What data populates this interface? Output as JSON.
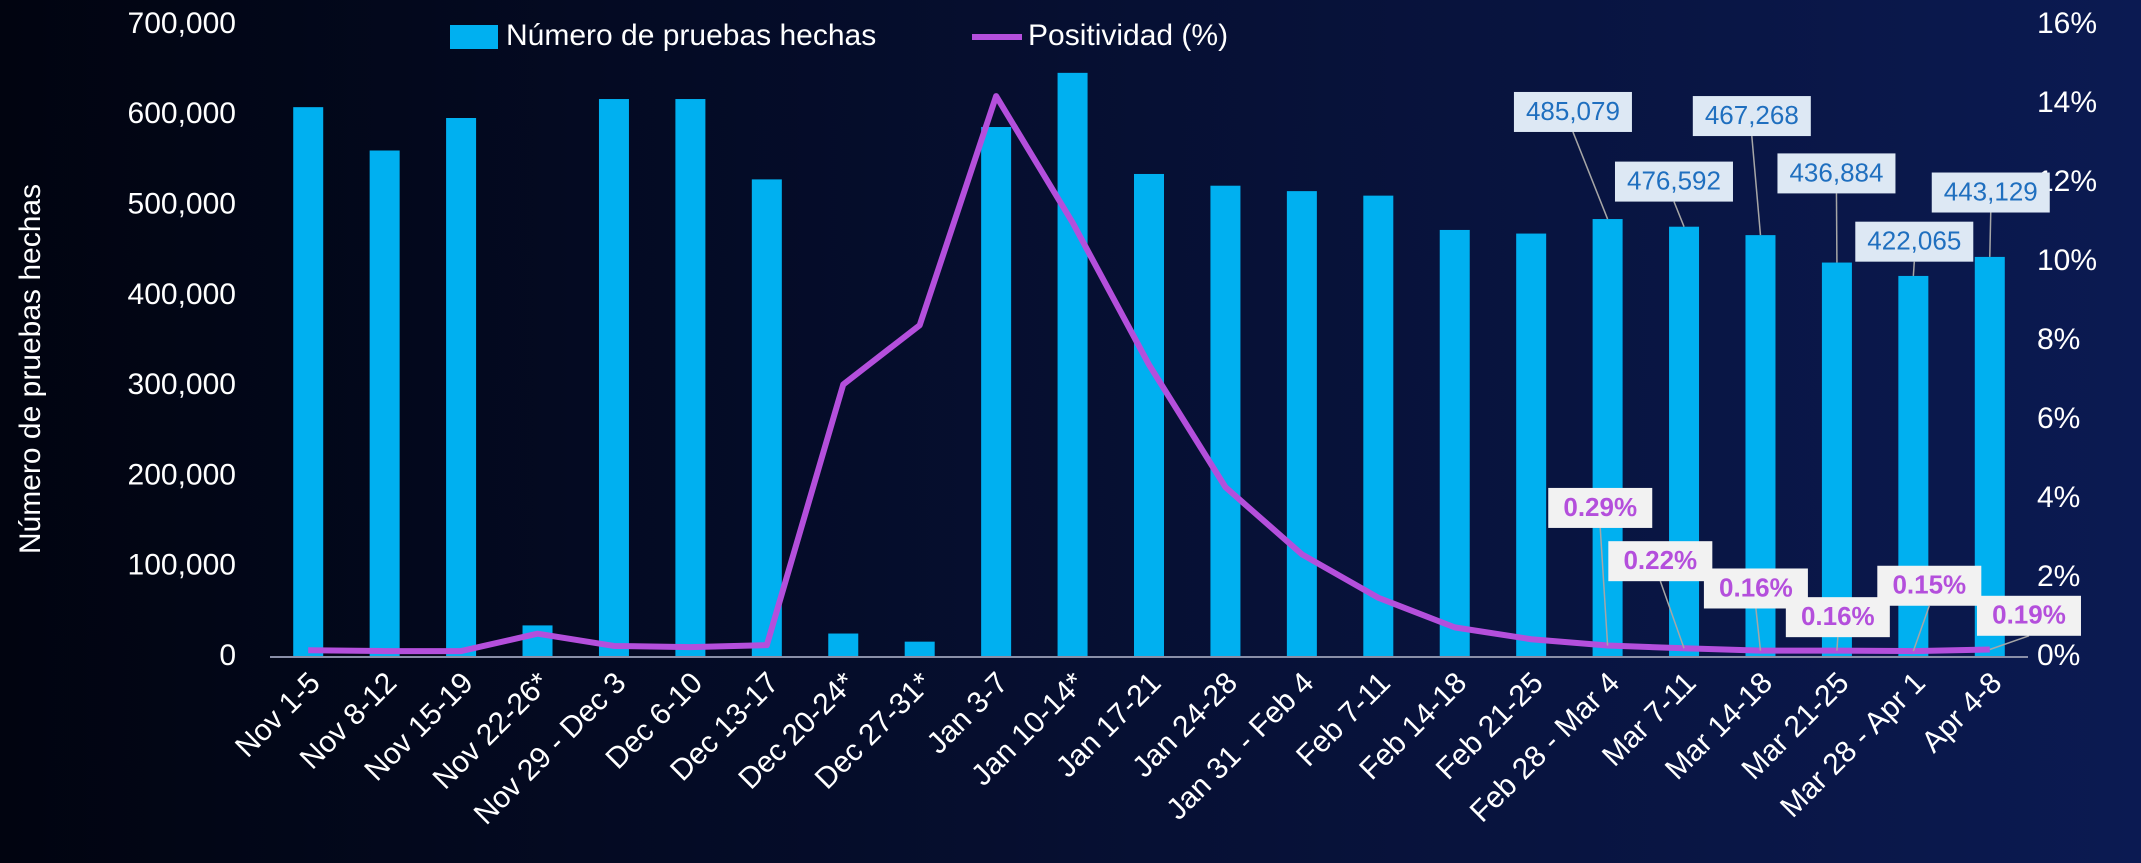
{
  "chart_data": {
    "type": "bar_line",
    "categories": [
      "Nov 1-5",
      "Nov 8-12",
      "Nov 15-19",
      "Nov 22-26*",
      "Nov 29 - Dec 3",
      "Dec 6-10",
      "Dec 13-17",
      "Dec 20-24*",
      "Dec 27-31*",
      "Jan 3-7",
      "Jan 10-14*",
      "Jan 17-21",
      "Jan 24-28",
      "Jan 31 - Feb 4",
      "Feb 7-11",
      "Feb 14-18",
      "Feb 21-25",
      "Feb 28 - Mar 4",
      "Mar 7-11",
      "Mar 14-18",
      "Mar 21-25",
      "Mar 28 - Apr 1",
      "Apr 4-8"
    ],
    "series": [
      {
        "name": "Número de pruebas hechas",
        "type": "bar",
        "color": "#00b0f0",
        "values": [
          609000,
          561000,
          597000,
          35000,
          618000,
          618000,
          529000,
          26000,
          17000,
          587000,
          647000,
          535000,
          522000,
          516000,
          511000,
          473000,
          469000,
          485079,
          476592,
          467268,
          436884,
          422065,
          443129
        ],
        "value_labels": [
          null,
          null,
          null,
          null,
          null,
          null,
          null,
          null,
          null,
          null,
          null,
          null,
          null,
          null,
          null,
          null,
          null,
          "485,079",
          "476,592",
          "467,268",
          "436,884",
          "422,065",
          "443,129"
        ]
      },
      {
        "name": "Positividad (%)",
        "type": "line",
        "axis": "y2",
        "color": "#b44fdc",
        "values": [
          0.17,
          0.15,
          0.15,
          0.59,
          0.28,
          0.25,
          0.3,
          6.9,
          8.4,
          14.2,
          11.0,
          7.4,
          4.3,
          2.6,
          1.5,
          0.75,
          0.45,
          0.29,
          0.22,
          0.16,
          0.16,
          0.15,
          0.19
        ],
        "value_labels": [
          null,
          null,
          null,
          null,
          null,
          null,
          null,
          null,
          null,
          null,
          null,
          null,
          null,
          null,
          null,
          null,
          null,
          "0.29%",
          "0.22%",
          "0.16%",
          "0.16%",
          "0.15%",
          "0.19%"
        ]
      }
    ],
    "ylabel": "Número de pruebas hechas",
    "ylim": [
      0,
      700000
    ],
    "yticks": [
      0,
      {
        "value": 100000,
        "label": "100,000"
      },
      {
        "value": 200000,
        "label": "200,000"
      },
      {
        "value": 300000,
        "label": "300,000"
      },
      {
        "value": 400000,
        "label": "400,000"
      },
      {
        "value": 500000,
        "label": "500,000"
      },
      {
        "value": 600000,
        "label": "600,000"
      },
      {
        "value": 700000,
        "label": "700,000"
      }
    ],
    "y2lim": [
      0,
      16
    ],
    "y2ticks": [
      {
        "value": 0,
        "label": "0%"
      },
      {
        "value": 2,
        "label": "2%"
      },
      {
        "value": 4,
        "label": "4%"
      },
      {
        "value": 6,
        "label": "6%"
      },
      {
        "value": 8,
        "label": "8%"
      },
      {
        "value": 10,
        "label": "10%"
      },
      {
        "value": 12,
        "label": "12%"
      },
      {
        "value": 14,
        "label": "14%"
      },
      {
        "value": 16,
        "label": "16%"
      }
    ],
    "legend": "top"
  }
}
